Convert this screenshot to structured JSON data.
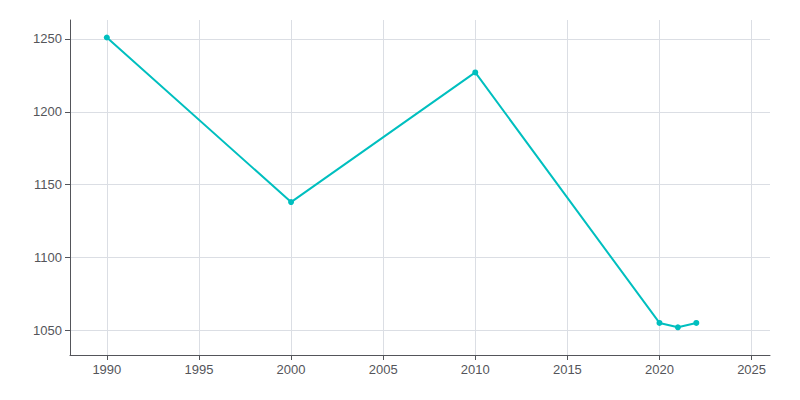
{
  "chart_data": {
    "type": "line",
    "x": [
      1990,
      2000,
      2010,
      2020,
      2021,
      2022
    ],
    "values": [
      1251,
      1138,
      1227,
      1055,
      1052,
      1055
    ],
    "color": "#00BFBF",
    "marker": "circle",
    "xlim": [
      1988,
      2026
    ],
    "xticks": [
      1990,
      1995,
      2000,
      2005,
      2010,
      2015,
      2020,
      2025
    ],
    "ylim": [
      1033,
      1263
    ],
    "yticks": [
      1050,
      1100,
      1150,
      1200,
      1250
    ],
    "grid": true
  }
}
